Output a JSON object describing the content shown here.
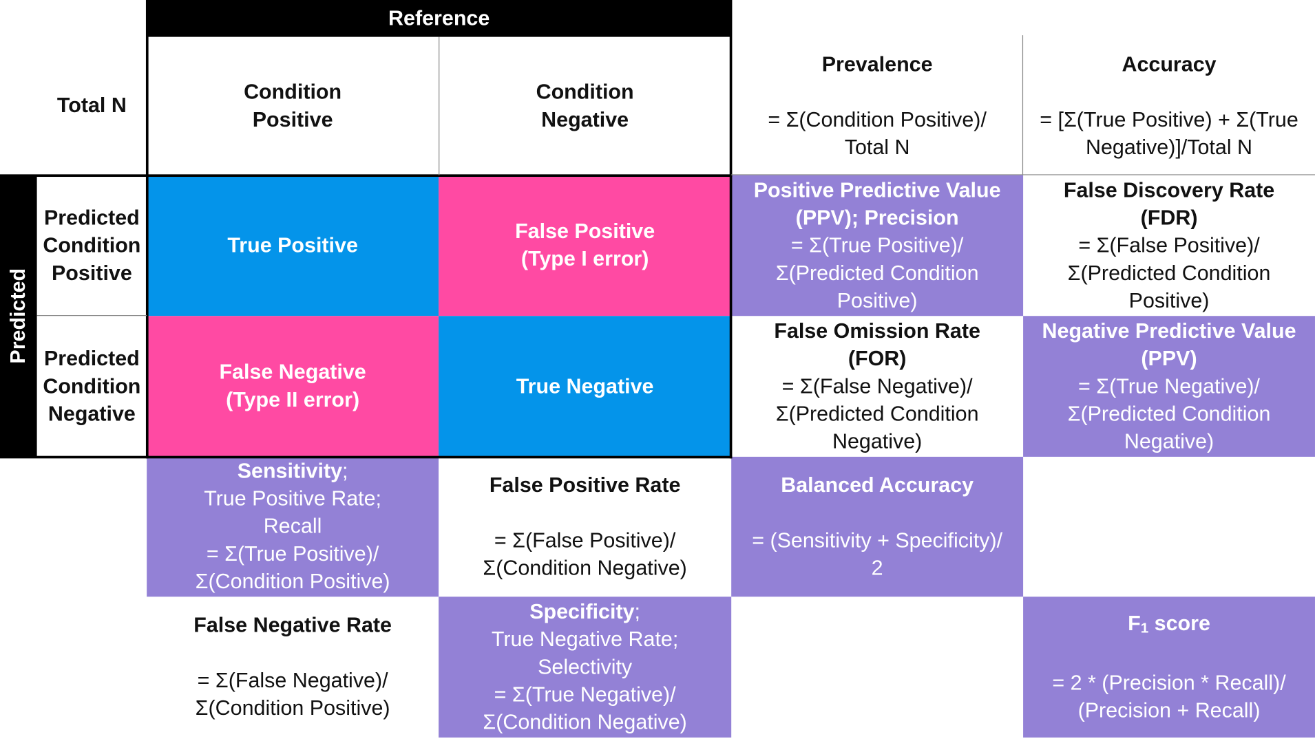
{
  "header": {
    "reference": "Reference",
    "predicted": "Predicted",
    "total_n": "Total N",
    "condition_positive": [
      "Condition",
      "Positive"
    ],
    "condition_negative": [
      "Condition",
      "Negative"
    ],
    "predicted_condition_positive": [
      "Predicted",
      "Condition",
      "Positive"
    ],
    "predicted_condition_negative": [
      "Predicted",
      "Condition",
      "Negative"
    ]
  },
  "matrix": {
    "true_positive": "True Positive",
    "false_positive": [
      "False Positive",
      "(Type I error)"
    ],
    "false_negative": [
      "False Negative",
      "(Type II error)"
    ],
    "true_negative": "True Negative"
  },
  "metrics": {
    "prevalence": {
      "title": "Prevalence",
      "formula": [
        "= Σ(Condition Positive)/",
        "Total N"
      ]
    },
    "accuracy": {
      "title": "Accuracy",
      "formula": [
        "= [Σ(True Positive) + Σ(True",
        "Negative)]/Total N"
      ]
    },
    "ppv": {
      "title": [
        "Positive Predictive Value",
        "(PPV); Precision"
      ],
      "formula": [
        "= Σ(True Positive)/",
        "Σ(Predicted Condition",
        "Positive)"
      ]
    },
    "fdr": {
      "title": [
        "False Discovery Rate",
        "(FDR)"
      ],
      "formula": [
        "= Σ(False Positive)/",
        "Σ(Predicted Condition",
        "Positive)"
      ]
    },
    "for": {
      "title": [
        "False Omission Rate",
        "(FOR)"
      ],
      "formula": [
        "= Σ(False Negative)/",
        "Σ(Predicted Condition",
        "Negative)"
      ]
    },
    "npv": {
      "title": [
        "Negative Predictive Value",
        "(PPV)"
      ],
      "formula": [
        "= Σ(True Negative)/",
        "Σ(Predicted Condition",
        "Negative)"
      ]
    },
    "sensitivity": {
      "title": "Sensitivity",
      "subtitle": ";",
      "aliases": [
        "True Positive Rate;",
        "Recall"
      ],
      "formula": [
        "= Σ(True Positive)/",
        "Σ(Condition Positive)"
      ]
    },
    "fpr": {
      "title": "False Positive Rate",
      "formula": [
        "= Σ(False Positive)/",
        "Σ(Condition Negative)"
      ]
    },
    "balanced_accuracy": {
      "title": "Balanced Accuracy",
      "formula": [
        "= (Sensitivity + Specificity)/",
        "2"
      ]
    },
    "fnr": {
      "title": "False Negative Rate",
      "formula": [
        "= Σ(False Negative)/",
        "Σ(Condition Positive)"
      ]
    },
    "specificity": {
      "title": "Specificity",
      "subtitle": ";",
      "aliases": [
        "True Negative Rate;",
        "Selectivity"
      ],
      "formula": [
        "= Σ(True Negative)/",
        "Σ(Condition Negative)"
      ]
    },
    "f1": {
      "title_main": "F",
      "title_sub": "1",
      "title_rest": " score",
      "formula": [
        "= 2 * (Precision * Recall)/",
        "(Precision + Recall)"
      ]
    }
  },
  "colors": {
    "metric_fill": "#9381d6",
    "true_fill": "#0494ea",
    "false_fill": "#ff4aa3",
    "header_fill": "#000000"
  }
}
